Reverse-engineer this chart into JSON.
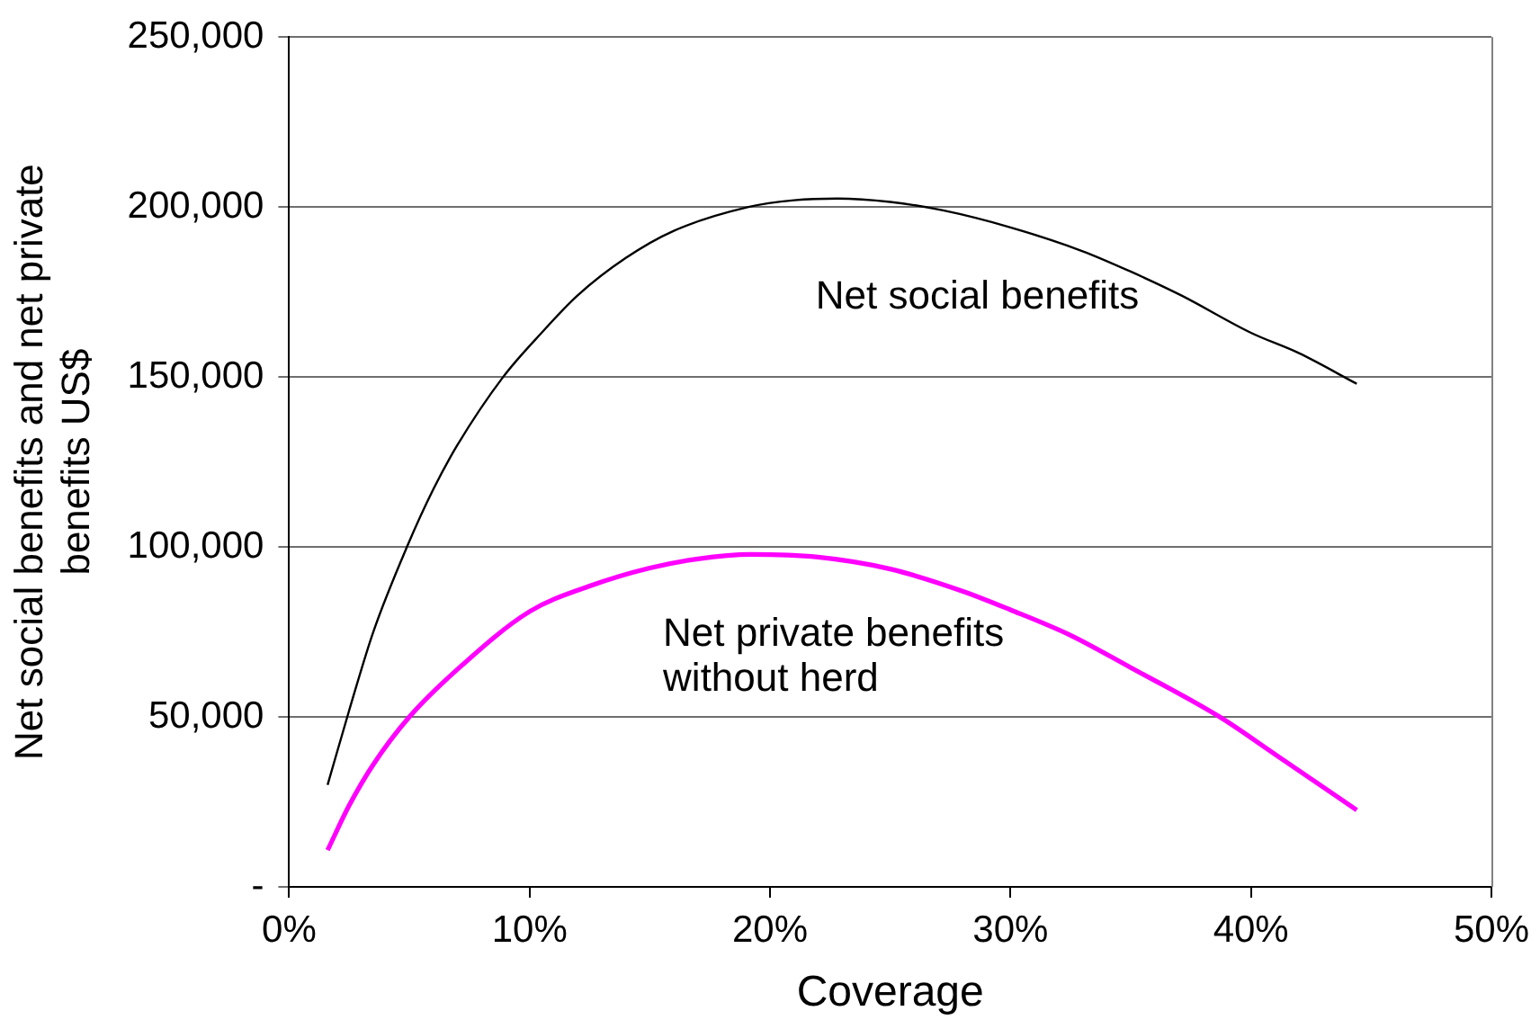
{
  "chart_data": {
    "type": "line",
    "xlabel": "Coverage",
    "ylabel": "Net social benefits and net private benefits US$",
    "xlim": [
      0,
      50
    ],
    "xticks": [
      {
        "value": 0,
        "label": "0%"
      },
      {
        "value": 10,
        "label": "10%"
      },
      {
        "value": 20,
        "label": "20%"
      },
      {
        "value": 30,
        "label": "30%"
      },
      {
        "value": 40,
        "label": "40%"
      },
      {
        "value": 50,
        "label": "50%"
      }
    ],
    "ylim": [
      0,
      250000
    ],
    "yticks": [
      {
        "value": 0,
        "label": "-"
      },
      {
        "value": 50000,
        "label": "50,000"
      },
      {
        "value": 100000,
        "label": "100,000"
      },
      {
        "value": 150000,
        "label": "150,000"
      },
      {
        "value": 200000,
        "label": "200,000"
      },
      {
        "value": 250000,
        "label": "250,000"
      }
    ],
    "grid": "y",
    "legend": false,
    "marker": "none",
    "line_style": "solid",
    "series": [
      {
        "name": "Net social benefits",
        "color": "#000000",
        "x": [
          1.6,
          2.5,
          3.5,
          4.9,
          6,
          7,
          8.9,
          10.5,
          12,
          14,
          16,
          19.1,
          21,
          22.8,
          25,
          27.2,
          30,
          33,
          35,
          37.1,
          40,
          42,
          44.4
        ],
        "values": [
          30000,
          52000,
          75000,
          100000,
          117000,
          130000,
          150000,
          163000,
          174000,
          185000,
          193000,
          200000,
          202000,
          202500,
          201500,
          199000,
          194000,
          187000,
          181000,
          174000,
          163000,
          157000,
          148000
        ]
      },
      {
        "name": "Net private benefits without herd",
        "color": "#ff00ff",
        "x": [
          1.6,
          2.5,
          3.5,
          5,
          7,
          10,
          12.5,
          15,
          17,
          19.2,
          22,
          25,
          28,
          30,
          32.5,
          35,
          38.7,
          41,
          44.4
        ],
        "values": [
          10800,
          24000,
          36000,
          50000,
          64000,
          81000,
          88500,
          93800,
          96500,
          97800,
          97000,
          93500,
          87000,
          81500,
          74000,
          64500,
          50000,
          39000,
          22600
        ]
      }
    ]
  }
}
